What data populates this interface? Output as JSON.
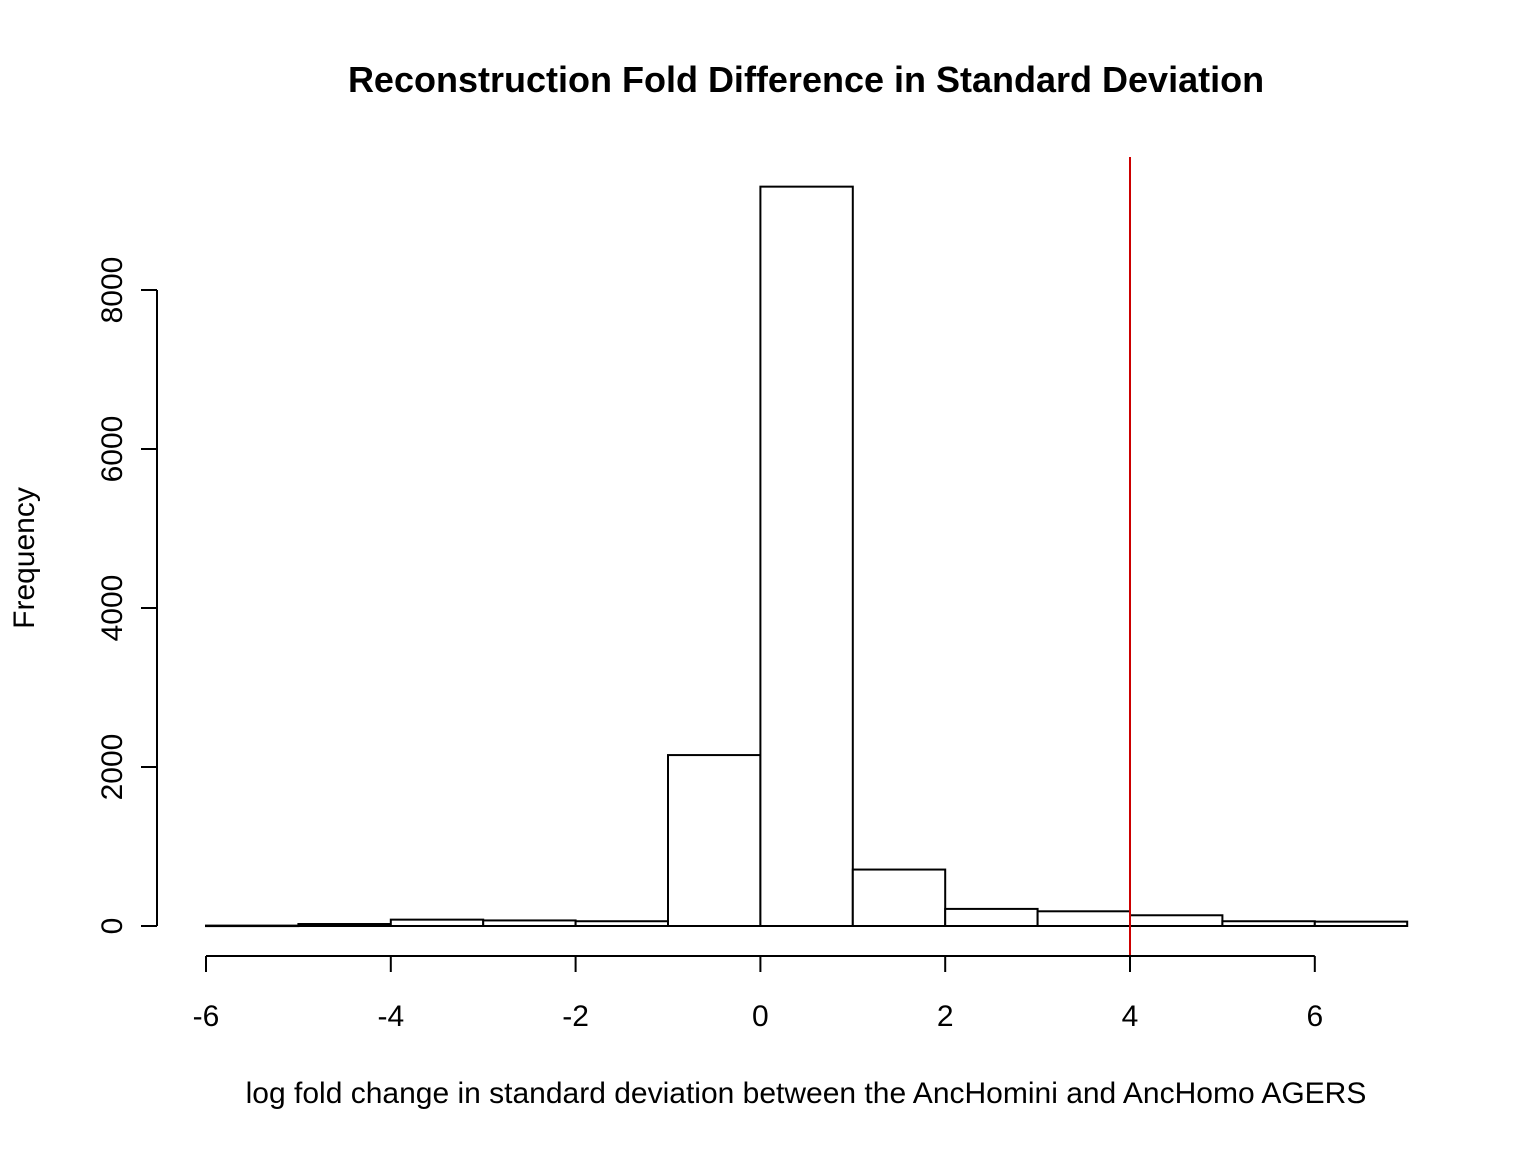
{
  "chart_data": {
    "type": "bar",
    "subtype": "histogram",
    "title": "Reconstruction Fold Difference in Standard Deviation",
    "xlabel": "log fold change in standard deviation between the AncHomini and AncHomo AGERS",
    "ylabel": "Frequency",
    "xlim": [
      -6,
      7
    ],
    "ylim": [
      0,
      9300
    ],
    "x_ticks": [
      -6,
      -4,
      -2,
      0,
      2,
      4,
      6
    ],
    "y_ticks": [
      0,
      2000,
      4000,
      6000,
      8000
    ],
    "bin_edges": [
      -6,
      -5,
      -4,
      -3,
      -2,
      -1,
      0,
      1,
      2,
      3,
      4,
      5,
      6,
      7
    ],
    "values": [
      5,
      25,
      80,
      70,
      60,
      2150,
      9300,
      710,
      215,
      185,
      135,
      60,
      55
    ],
    "reference_line": {
      "x": 4,
      "color": "#cc0000"
    },
    "bar_fill": "#ffffff",
    "bar_stroke": "#000000",
    "grid": false,
    "legend": "none"
  }
}
